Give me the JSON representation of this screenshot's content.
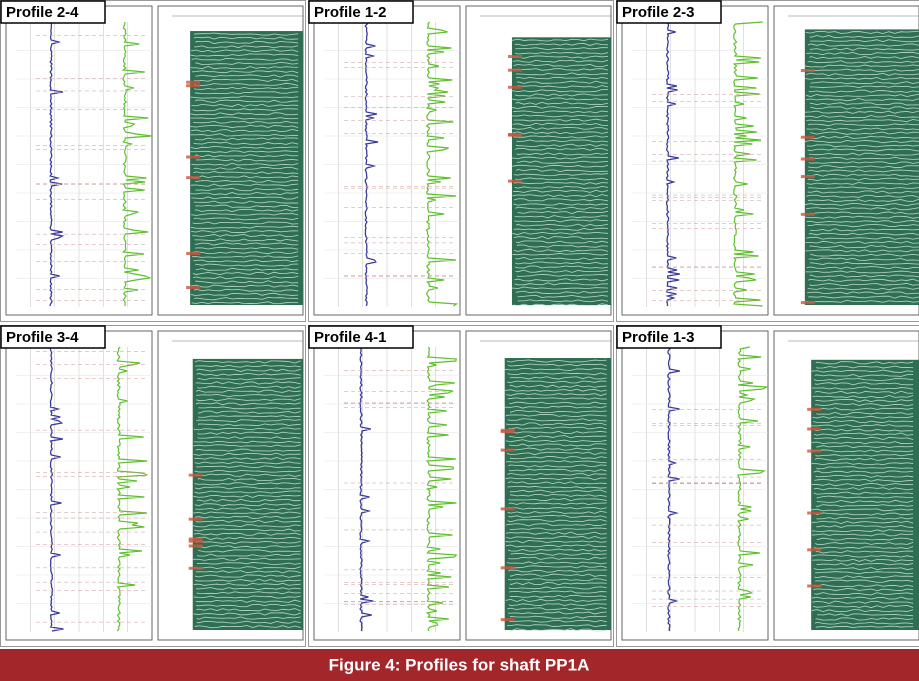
{
  "figure": {
    "panels": [
      {
        "label": "Profile 2-4"
      },
      {
        "label": "Profile 1-2"
      },
      {
        "label": "Profile 2-3"
      },
      {
        "label": "Profile 3-4"
      },
      {
        "label": "Profile 4-1"
      },
      {
        "label": "Profile 1-3"
      }
    ],
    "caption": "Figure 4: Profiles for shaft PP1A"
  }
}
